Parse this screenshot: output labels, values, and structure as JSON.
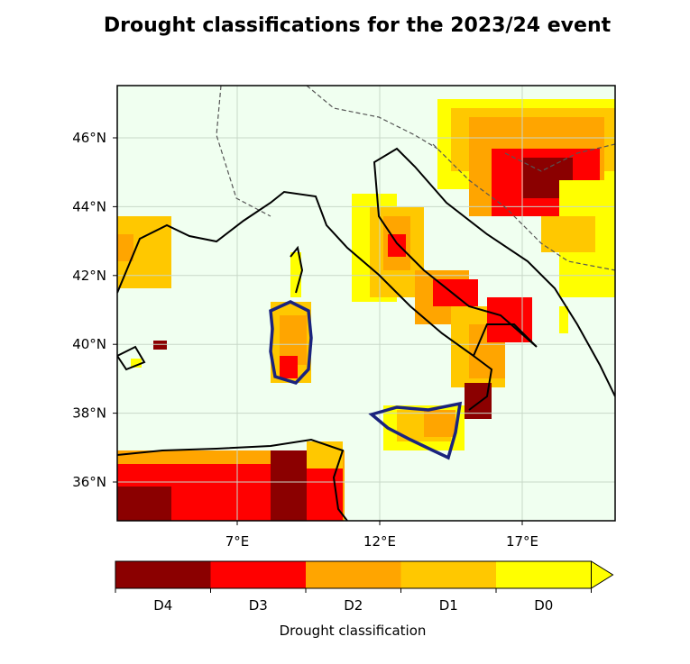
{
  "title": "Drought classifications for the 2023/24 event",
  "map": {
    "background_color": "#f0fff0",
    "lat_ticks": [
      {
        "value": 46,
        "label": "46°N"
      },
      {
        "value": 44,
        "label": "44°N"
      },
      {
        "value": 42,
        "label": "42°N"
      },
      {
        "value": 40,
        "label": "40°N"
      },
      {
        "value": 38,
        "label": "38°N"
      },
      {
        "value": 36,
        "label": "36°N"
      }
    ],
    "lon_ticks": [
      {
        "value": 7,
        "label": "7°E"
      },
      {
        "value": 12,
        "label": "12°E"
      },
      {
        "value": 17,
        "label": "17°E"
      }
    ],
    "highlighted_regions_outline_color": "#1a237e",
    "highlighted_regions": [
      "Sardinia",
      "Sicily"
    ]
  },
  "colorbar": {
    "label": "Drought classification",
    "classes": [
      {
        "label": "D4",
        "color": "#8b0000"
      },
      {
        "label": "D3",
        "color": "#ff0000"
      },
      {
        "label": "D2",
        "color": "#ffa500"
      },
      {
        "label": "D1",
        "color": "#ffc800"
      },
      {
        "label": "D0",
        "color": "#ffff00"
      }
    ],
    "extend": "max"
  }
}
